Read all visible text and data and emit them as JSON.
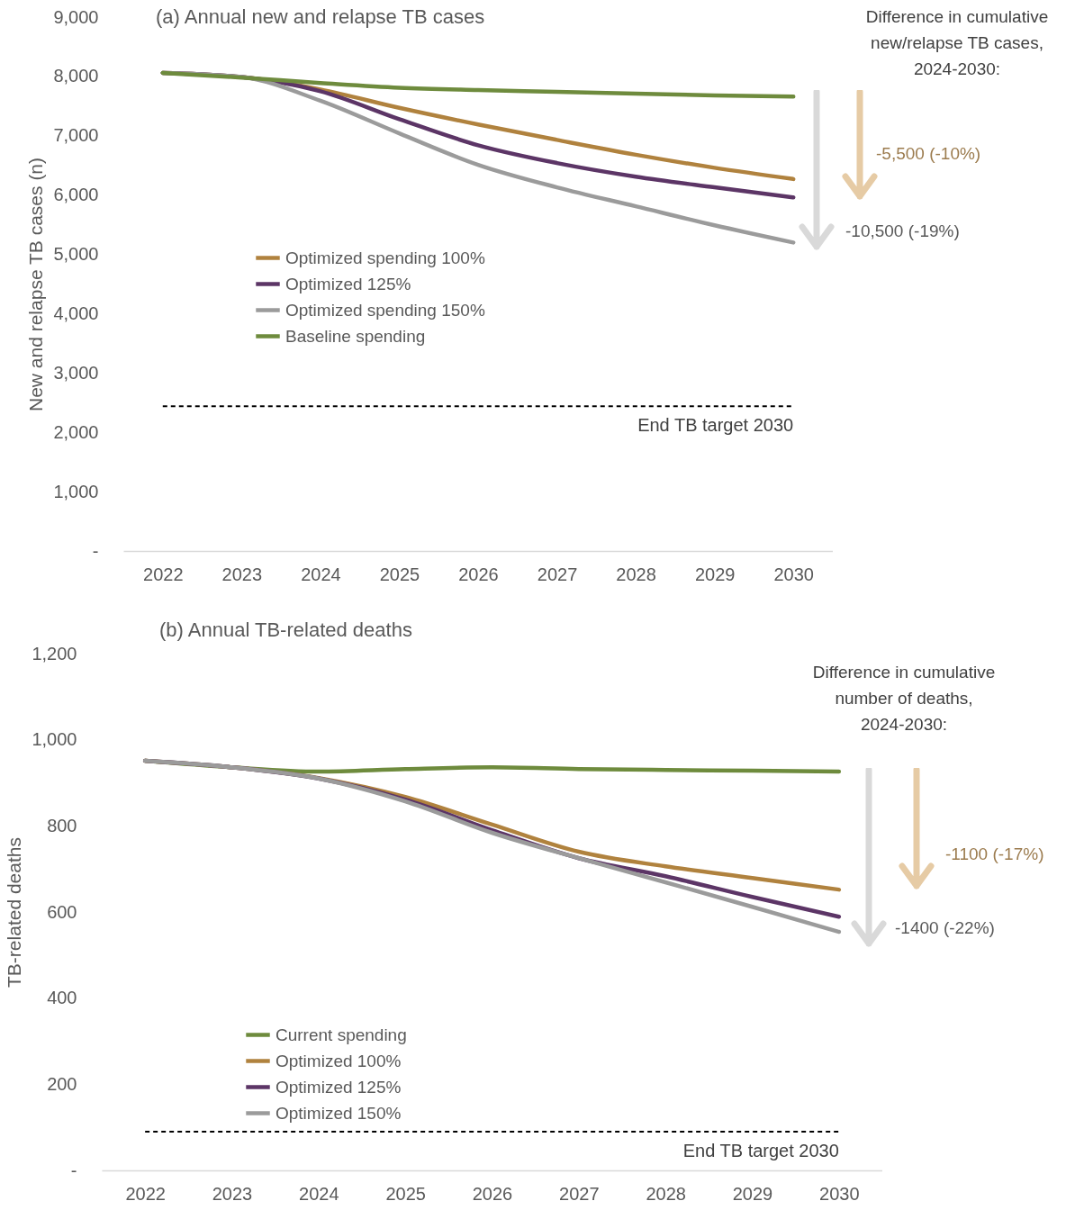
{
  "chart_data": [
    {
      "type": "line",
      "title": "(a) Annual new and relapse TB cases",
      "ylabel": "New and relapse TB cases (n)",
      "x": [
        2022,
        2023,
        2024,
        2025,
        2026,
        2027,
        2028,
        2029,
        2030
      ],
      "xlim": [
        2021.5,
        2030.5
      ],
      "xticks": [
        2022,
        2023,
        2024,
        2025,
        2026,
        2027,
        2028,
        2029,
        2030
      ],
      "ylim": [
        0,
        9000
      ],
      "yticks": [
        {
          "value": 0,
          "label": "-"
        },
        {
          "value": 1000,
          "label": "1,000"
        },
        {
          "value": 2000,
          "label": "2,000"
        },
        {
          "value": 3000,
          "label": "3,000"
        },
        {
          "value": 4000,
          "label": "4,000"
        },
        {
          "value": 5000,
          "label": "5,000"
        },
        {
          "value": 6000,
          "label": "6,000"
        },
        {
          "value": 7000,
          "label": "7,000"
        },
        {
          "value": 8000,
          "label": "8,000"
        },
        {
          "value": 9000,
          "label": "9,000"
        }
      ],
      "series": [
        {
          "name": "Optimized spending 100%",
          "color": "#b0823e",
          "values": [
            8060,
            7990,
            7780,
            7470,
            7190,
            6930,
            6680,
            6460,
            6270
          ]
        },
        {
          "name": "Optimized 125%",
          "color": "#5c3566",
          "values": [
            8060,
            7990,
            7750,
            7280,
            6840,
            6540,
            6310,
            6130,
            5960
          ]
        },
        {
          "name": "Optimized spending 150%",
          "color": "#9b9b9b",
          "values": [
            8060,
            7990,
            7590,
            7040,
            6510,
            6130,
            5810,
            5490,
            5200
          ]
        },
        {
          "name": "Baseline spending",
          "color": "#6e8b3d",
          "values": [
            8060,
            7980,
            7890,
            7810,
            7770,
            7740,
            7710,
            7680,
            7660
          ]
        }
      ],
      "ref_lines": [
        {
          "axis": "y",
          "value": 2440,
          "label": "End TB target 2030",
          "color": "#000000",
          "line_style": "dashed"
        }
      ],
      "annotations": [
        "Difference in cumulative new/relapse TB cases, 2024-2030:",
        "-5,500 (-10%)",
        "-10,500 (-19%)"
      ],
      "legend": "left",
      "grid": false,
      "line_style": "solid",
      "marker": "none"
    },
    {
      "type": "line",
      "title": "(b) Annual TB-related deaths",
      "ylabel": "TB-related deaths",
      "x": [
        2022,
        2023,
        2024,
        2025,
        2026,
        2027,
        2028,
        2029,
        2030
      ],
      "xlim": [
        2021.5,
        2030.5
      ],
      "xticks": [
        2022,
        2023,
        2024,
        2025,
        2026,
        2027,
        2028,
        2029,
        2030
      ],
      "ylim": [
        0,
        1200
      ],
      "yticks": [
        {
          "value": 0,
          "label": "-"
        },
        200,
        400,
        600,
        800,
        {
          "value": 1000,
          "label": "1,000"
        },
        {
          "value": 1200,
          "label": "1,200"
        }
      ],
      "series": [
        {
          "name": "Current spending",
          "color": "#6e8b3d",
          "values": [
            951,
            936,
            926,
            932,
            936,
            932,
            930,
            928,
            926
          ]
        },
        {
          "name": "Optimized 100%",
          "color": "#b0823e",
          "values": [
            951,
            936,
            911,
            867,
            803,
            740,
            706,
            679,
            652
          ]
        },
        {
          "name": "Optimized 125%",
          "color": "#5c3566",
          "values": [
            951,
            936,
            910,
            861,
            790,
            725,
            683,
            635,
            589
          ]
        },
        {
          "name": "Optimized 150%",
          "color": "#9b9b9b",
          "values": [
            951,
            936,
            910,
            857,
            784,
            725,
            669,
            612,
            554
          ]
        }
      ],
      "ref_lines": [
        {
          "axis": "y",
          "value": 90,
          "label": "End TB target 2030",
          "color": "#000000",
          "line_style": "dashed"
        }
      ],
      "annotations": [
        "Difference in cumulative number of deaths, 2024-2030:",
        "-1100 (-17%)",
        "-1400 (-22%)"
      ],
      "legend": "left",
      "grid": false,
      "line_style": "solid",
      "marker": "none"
    }
  ]
}
